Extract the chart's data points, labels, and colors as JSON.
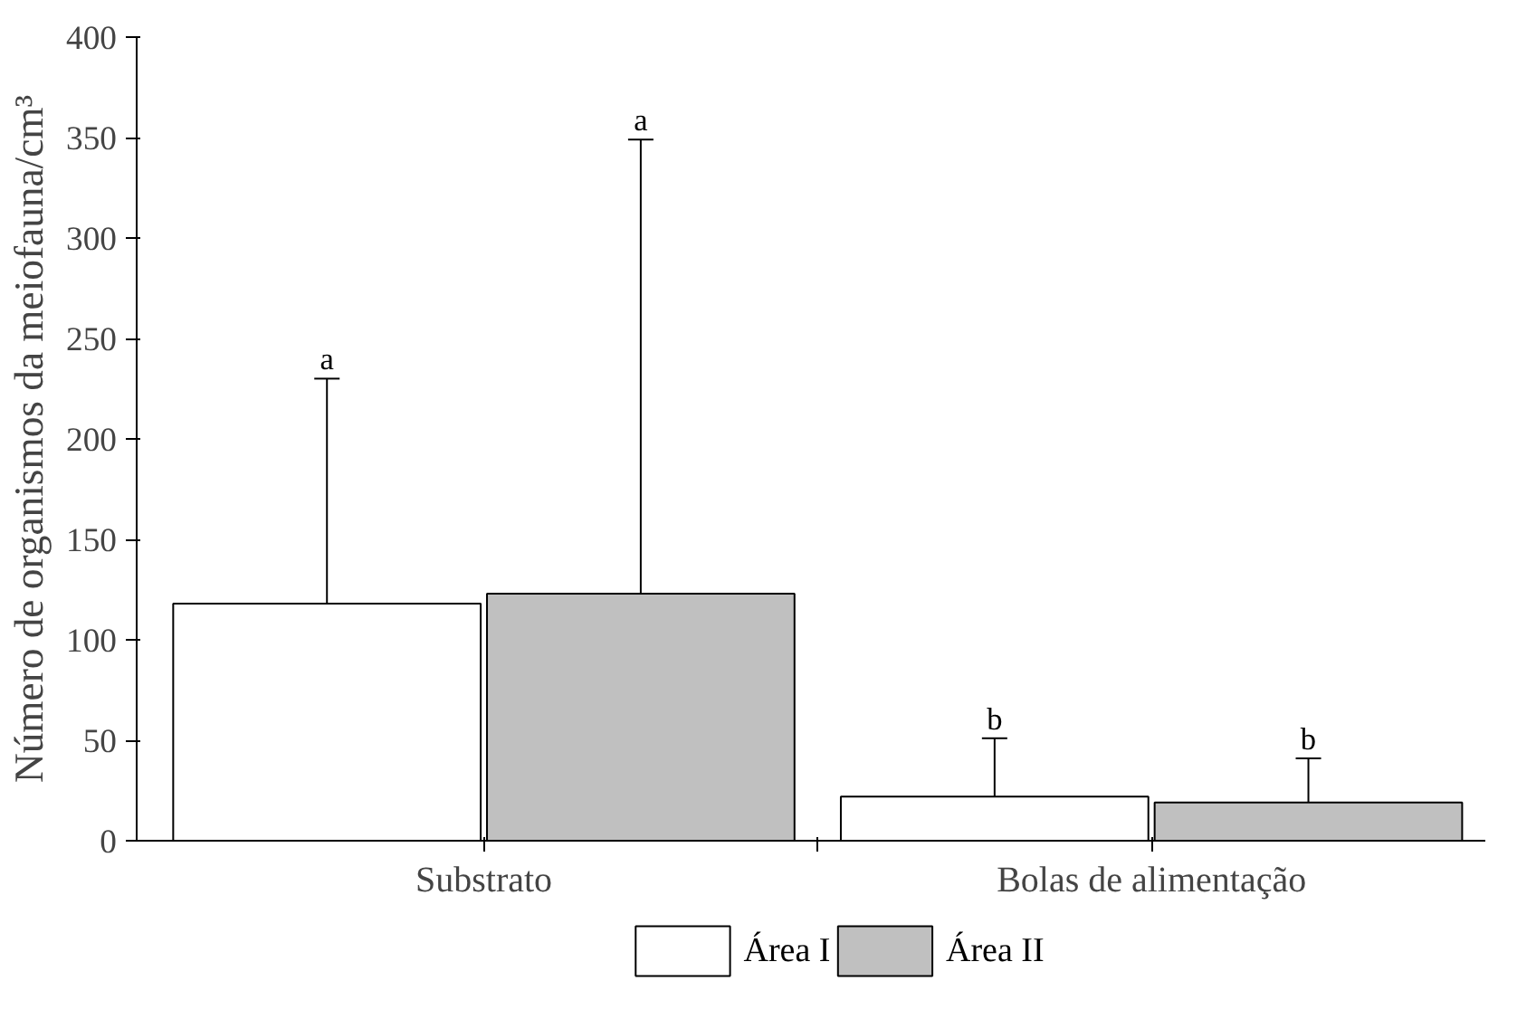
{
  "chart_data": {
    "type": "bar",
    "ylabel": "Número de organismos da meiofauna/cm³",
    "categories": [
      "Substrato",
      "Bolas de alimentação"
    ],
    "series": [
      {
        "name": "Área I",
        "color": "#ffffff",
        "values": [
          118,
          22
        ],
        "errors": [
          [
            118,
            230
          ],
          [
            22,
            51
          ]
        ]
      },
      {
        "name": "Área II",
        "color": "#c0c0c0",
        "values": [
          123,
          19
        ],
        "errors": [
          [
            123,
            349
          ],
          [
            19,
            41
          ]
        ]
      }
    ],
    "ylim": [
      0,
      400
    ],
    "yticks": [
      0,
      50,
      100,
      150,
      200,
      250,
      300,
      350,
      400
    ],
    "grid": false,
    "legend": "bottom",
    "annotations": [
      "a",
      "a",
      "b",
      "b"
    ]
  }
}
